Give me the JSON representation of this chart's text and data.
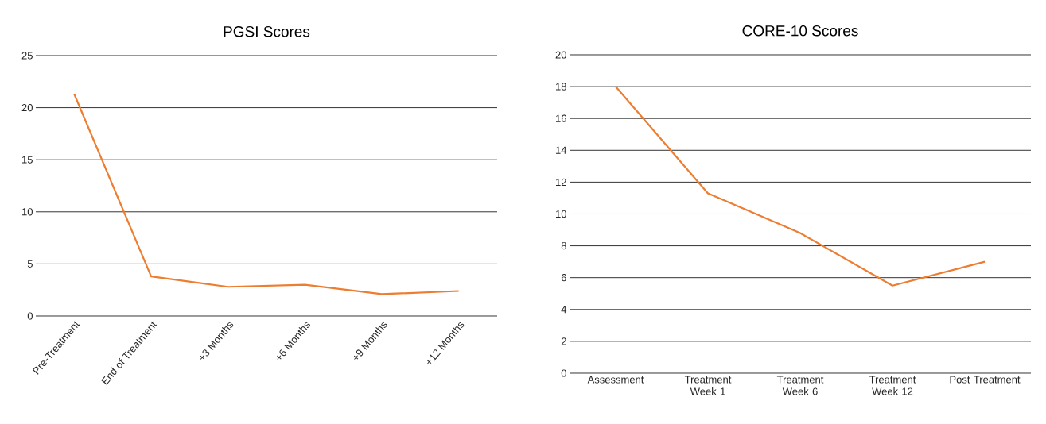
{
  "chart_data": [
    {
      "type": "line",
      "title": "PGSI Scores",
      "categories": [
        "Pre-Treatment",
        "End of Treatment",
        "+3 Months",
        "+6 Months",
        "+9 Months",
        "+12 Months"
      ],
      "values": [
        21.3,
        3.8,
        2.8,
        3.0,
        2.1,
        2.4
      ],
      "color": "#ed7d31",
      "ylim": [
        0,
        25
      ],
      "yticks": [
        0,
        5,
        10,
        15,
        20,
        25
      ],
      "grid": "y"
    },
    {
      "type": "line",
      "title": "CORE-10 Scores",
      "categories": [
        "Assessment",
        "Treatment Week 1",
        "Treatment Week 6",
        "Treatment Week 12",
        "Post Treatment"
      ],
      "values": [
        18.0,
        11.3,
        8.8,
        5.5,
        7.0
      ],
      "color": "#ed7d31",
      "ylim": [
        0,
        20
      ],
      "yticks": [
        0,
        2,
        4,
        6,
        8,
        10,
        12,
        14,
        16,
        18,
        20
      ],
      "grid": "y"
    }
  ]
}
